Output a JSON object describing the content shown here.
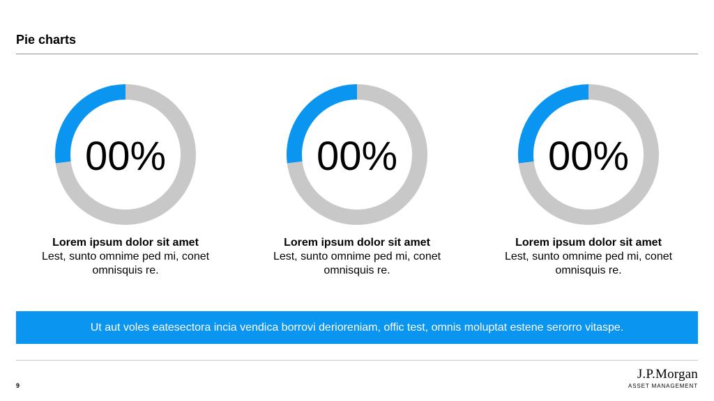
{
  "page": {
    "title": "Pie charts",
    "page_number": "9",
    "banner_text": "Ut aut voles eatesectora incia vendica borrovi derioreniam, offic test, omnis moluptat estene serorro vitaspe.",
    "logo_line1": "J.P.Morgan",
    "logo_line2": "ASSET MANAGEMENT"
  },
  "colors": {
    "accent": "#0a95f0",
    "remainder": "#c8c8c8"
  },
  "cards": [
    {
      "value_label": "00%",
      "heading": "Lorem ipsum dolor sit amet",
      "body": "Lest, sunto omnime ped mi, conet omnisquis re."
    },
    {
      "value_label": "00%",
      "heading": "Lorem ipsum dolor sit amet",
      "body": "Lest, sunto omnime ped mi, conet omnisquis re."
    },
    {
      "value_label": "00%",
      "heading": "Lorem ipsum dolor sit amet",
      "body": "Lest, sunto omnime ped mi, conet omnisquis re."
    }
  ],
  "chart_data": [
    {
      "type": "pie",
      "values": [
        27,
        73
      ],
      "title": ""
    },
    {
      "type": "pie",
      "values": [
        27,
        73
      ],
      "title": ""
    },
    {
      "type": "pie",
      "values": [
        27,
        73
      ],
      "title": ""
    }
  ]
}
